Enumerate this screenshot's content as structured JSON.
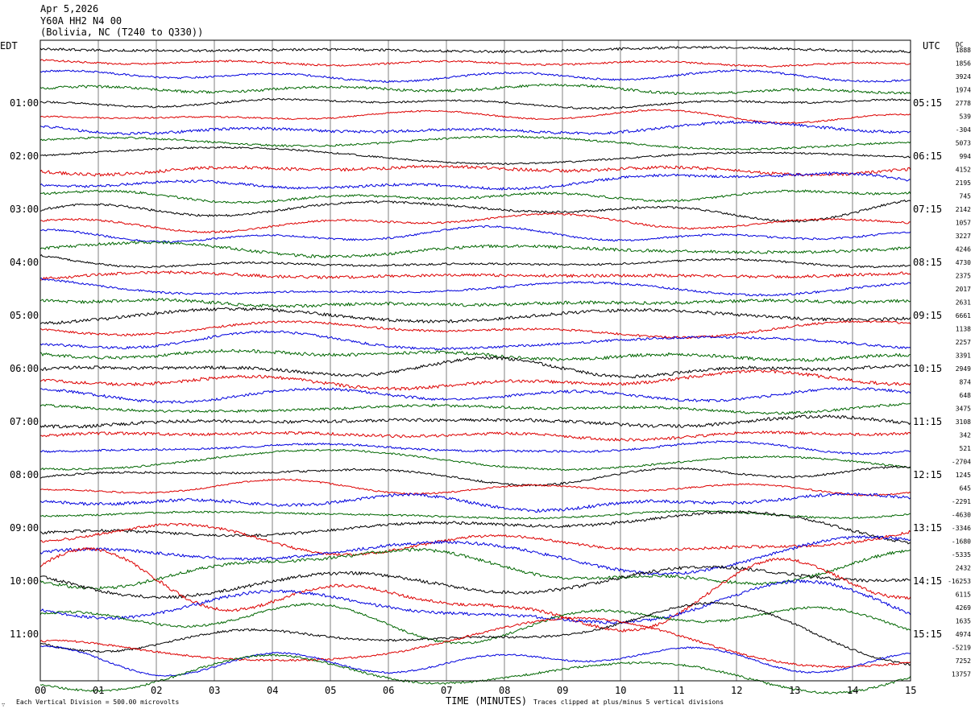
{
  "header": {
    "date": "Apr 5,2026",
    "station": "Y60A HH2 N4 00",
    "location": "(Bolivia, NC (T240 to Q330))"
  },
  "left_zone": "EDT",
  "right_zone": "UTC",
  "dc_label": "DC",
  "footer": {
    "scale": "Each Vertical Division =  500.00 microvolts",
    "clip": "Traces clipped at plus/minus 5 vertical divisions",
    "corner_mark": "∵"
  },
  "chart_data": {
    "type": "line",
    "title": "",
    "xlabel": "TIME (MINUTES)",
    "ylabel": "",
    "xlim": [
      0,
      15
    ],
    "x_ticks": [
      "00",
      "01",
      "02",
      "03",
      "04",
      "05",
      "06",
      "07",
      "08",
      "09",
      "10",
      "11",
      "12",
      "13",
      "14",
      "15"
    ],
    "left_time_labels": [
      "01:00",
      "02:00",
      "03:00",
      "04:00",
      "05:00",
      "06:00",
      "07:00",
      "08:00",
      "09:00",
      "10:00",
      "11:00"
    ],
    "right_time_labels": [
      "05:15",
      "06:15",
      "07:15",
      "08:15",
      "09:15",
      "10:15",
      "11:15",
      "12:15",
      "13:15",
      "14:15",
      "15:15"
    ],
    "label_first_row": 4,
    "rows_per_label": 4,
    "trace_colors": [
      "#000000",
      "#dd0000",
      "#0000dd",
      "#006600"
    ],
    "dc_offsets": [
      "1888",
      "1856",
      "3924",
      "1974",
      "2778",
      "539",
      "-304",
      "5073",
      "994",
      "4152",
      "2195",
      "745",
      "2142",
      "1057",
      "3227",
      "4246",
      "4730",
      "2375",
      "2017",
      "2631",
      "6661",
      "1138",
      "2257",
      "3391",
      "2949",
      "874",
      "648",
      "3475",
      "3108",
      "342",
      "521",
      "-2704",
      "1245",
      "645",
      "-2291",
      "-4630",
      "-3346",
      "-1680",
      "-5335",
      "2432",
      "-16253",
      "6115",
      "4269",
      "1635",
      "4974",
      "-5219",
      "7252",
      "13757"
    ],
    "trace_activity": [
      0.4,
      0.4,
      0.5,
      0.5,
      0.5,
      0.5,
      0.6,
      0.6,
      0.6,
      0.6,
      0.8,
      0.8,
      0.9,
      0.8,
      0.9,
      0.8,
      0.8,
      0.6,
      0.8,
      0.7,
      0.7,
      0.8,
      0.7,
      0.6,
      0.8,
      0.9,
      0.8,
      0.6,
      0.6,
      0.4,
      0.4,
      0.8,
      1.0,
      0.9,
      0.9,
      1.1,
      1.4,
      1.5,
      1.7,
      2.0,
      2.4,
      2.6,
      2.6,
      2.6,
      2.8,
      2.8,
      2.6,
      2.3
    ]
  }
}
